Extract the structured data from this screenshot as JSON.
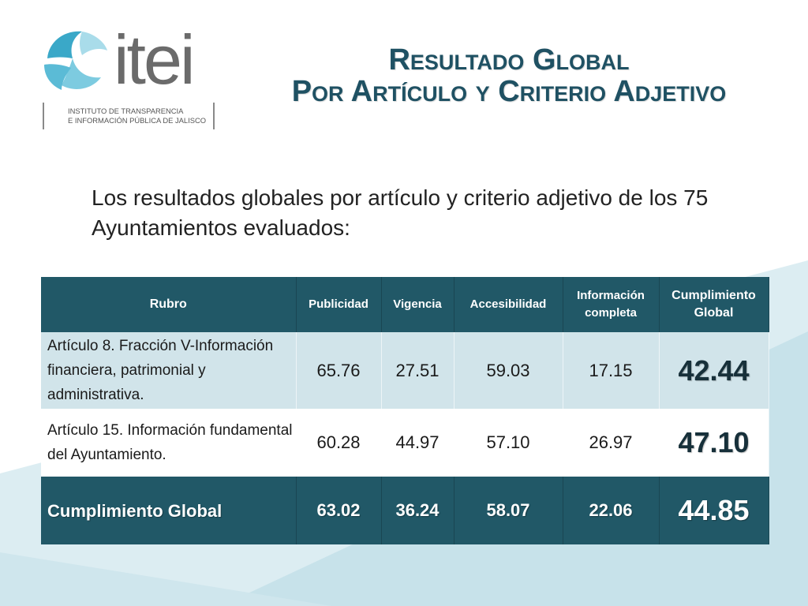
{
  "logo": {
    "word": "itei",
    "subtitle_line1": "INSTITUTO DE TRANSPARENCIA",
    "subtitle_line2": "E INFORMACIÓN PÚBLICA DE JALISCO"
  },
  "title": {
    "line1": "Resultado Global",
    "line2": "Por Artículo y Criterio Adjetivo"
  },
  "intro": "Los resultados globales por artículo y criterio adjetivo de los 75 Ayuntamientos evaluados:",
  "table": {
    "headers": [
      "Rubro",
      "Publicidad",
      "Vigencia",
      "Accesibilidad",
      "Información completa",
      "Cumplimiento Global"
    ],
    "rows": [
      {
        "rubro": "Artículo 8. Fracción V-Información financiera, patrimonial y administrativa.",
        "publicidad": "65.76",
        "vigencia": "27.51",
        "accesibilidad": "59.03",
        "informacion": "17.15",
        "cumplimiento": "42.44"
      },
      {
        "rubro": "Artículo 15. Información fundamental del Ayuntamiento.",
        "publicidad": "60.28",
        "vigencia": "44.97",
        "accesibilidad": "57.10",
        "informacion": "26.97",
        "cumplimiento": "47.10"
      }
    ],
    "total": {
      "rubro": "Cumplimiento Global",
      "publicidad": "63.02",
      "vigencia": "36.24",
      "accesibilidad": "58.07",
      "informacion": "22.06",
      "cumplimiento": "44.85"
    }
  },
  "colors": {
    "header_bg": "#215867",
    "title": "#1f5163",
    "row_highlight": "#d1e4ea",
    "background_wave": "#c6e1e8"
  }
}
